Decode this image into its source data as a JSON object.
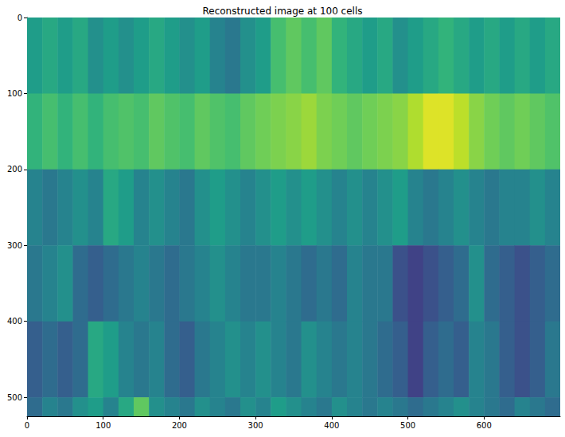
{
  "chart_data": {
    "type": "heatmap",
    "title": "Reconstructed image at 100 cells",
    "xlim": [
      0,
      700
    ],
    "xticks": [
      0,
      100,
      200,
      300,
      400,
      500,
      600
    ],
    "ylim": [
      525,
      0
    ],
    "yticks": [
      0,
      100,
      200,
      300,
      400,
      500
    ],
    "color_range": [
      0,
      1
    ],
    "x_edges": [
      0,
      20,
      40,
      60,
      80,
      100,
      120,
      140,
      160,
      180,
      200,
      220,
      240,
      260,
      280,
      300,
      320,
      340,
      360,
      380,
      400,
      420,
      440,
      460,
      480,
      500,
      520,
      540,
      560,
      580,
      600,
      620,
      640,
      660,
      680,
      700
    ],
    "y_edges": [
      0,
      100,
      200,
      300,
      400,
      500,
      525
    ],
    "cells": [
      [
        0.55,
        0.6,
        0.55,
        0.6,
        0.5,
        0.55,
        0.5,
        0.55,
        0.6,
        0.55,
        0.5,
        0.55,
        0.45,
        0.4,
        0.5,
        0.55,
        0.7,
        0.75,
        0.7,
        0.75,
        0.65,
        0.6,
        0.55,
        0.6,
        0.5,
        0.55,
        0.6,
        0.65,
        0.6,
        0.55,
        0.6,
        0.55,
        0.6,
        0.55,
        0.6
      ],
      [
        0.65,
        0.7,
        0.65,
        0.7,
        0.65,
        0.7,
        0.72,
        0.7,
        0.75,
        0.72,
        0.7,
        0.75,
        0.72,
        0.7,
        0.75,
        0.78,
        0.8,
        0.82,
        0.85,
        0.8,
        0.78,
        0.75,
        0.78,
        0.8,
        0.82,
        0.88,
        0.95,
        0.95,
        0.9,
        0.82,
        0.78,
        0.75,
        0.78,
        0.75,
        0.72
      ],
      [
        0.45,
        0.4,
        0.45,
        0.5,
        0.45,
        0.6,
        0.55,
        0.45,
        0.5,
        0.45,
        0.4,
        0.5,
        0.55,
        0.5,
        0.45,
        0.5,
        0.55,
        0.5,
        0.55,
        0.5,
        0.45,
        0.5,
        0.45,
        0.5,
        0.55,
        0.45,
        0.4,
        0.45,
        0.5,
        0.45,
        0.4,
        0.45,
        0.45,
        0.5,
        0.45
      ],
      [
        0.4,
        0.45,
        0.5,
        0.35,
        0.3,
        0.35,
        0.4,
        0.45,
        0.4,
        0.35,
        0.4,
        0.45,
        0.5,
        0.45,
        0.4,
        0.4,
        0.45,
        0.4,
        0.35,
        0.4,
        0.35,
        0.45,
        0.4,
        0.4,
        0.25,
        0.2,
        0.25,
        0.3,
        0.35,
        0.5,
        0.35,
        0.3,
        0.25,
        0.3,
        0.35
      ],
      [
        0.3,
        0.35,
        0.3,
        0.35,
        0.6,
        0.55,
        0.45,
        0.4,
        0.45,
        0.35,
        0.3,
        0.4,
        0.45,
        0.5,
        0.45,
        0.5,
        0.45,
        0.4,
        0.5,
        0.45,
        0.4,
        0.45,
        0.4,
        0.35,
        0.3,
        0.2,
        0.3,
        0.35,
        0.3,
        0.45,
        0.4,
        0.3,
        0.25,
        0.3,
        0.4
      ],
      [
        0.35,
        0.45,
        0.4,
        0.5,
        0.55,
        0.45,
        0.6,
        0.75,
        0.5,
        0.45,
        0.4,
        0.5,
        0.45,
        0.4,
        0.5,
        0.45,
        0.55,
        0.5,
        0.45,
        0.4,
        0.5,
        0.45,
        0.4,
        0.45,
        0.4,
        0.35,
        0.4,
        0.45,
        0.5,
        0.45,
        0.4,
        0.35,
        0.45,
        0.4,
        0.35
      ]
    ]
  }
}
